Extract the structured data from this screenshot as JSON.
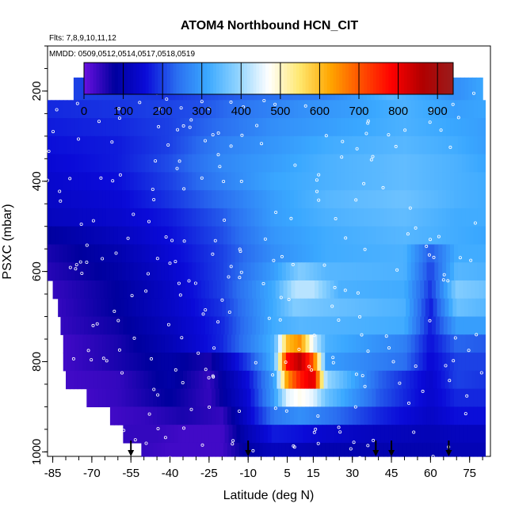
{
  "chart_data": {
    "type": "heatmap",
    "title": "ATOM4 Northbound HCN_CIT",
    "flights_label": "Flts: 7,8,9,10,11,12",
    "dates_label": "MMDD: 0509,0512,0514,0517,0518,0519",
    "xlabel": "Latitude (deg N)",
    "ylabel": "PSXC (mbar)",
    "xlim": [
      -87,
      83
    ],
    "ylim": [
      1010,
      100
    ],
    "x_ticks": [
      -85,
      -70,
      -55,
      -40,
      -25,
      -10,
      5,
      15,
      30,
      45,
      60,
      75
    ],
    "y_ticks": [
      200,
      400,
      600,
      800,
      1000
    ],
    "colorbar": {
      "range": [
        0,
        940
      ],
      "ticks": [
        0,
        100,
        200,
        300,
        400,
        500,
        600,
        700,
        800,
        900
      ],
      "colors": [
        "#6a10e0",
        "#00009e",
        "#0a0ad8",
        "#2a6df0",
        "#3aa8ff",
        "#8fd3ff",
        "#ffffff",
        "#ffe870",
        "#ffa600",
        "#ff5000",
        "#ff0000",
        "#b00000",
        "#9a1c1c"
      ]
    },
    "arrows_lat": [
      -55,
      -10,
      39,
      45,
      67
    ],
    "rows": [
      {
        "p": 200,
        "xmin": -77,
        "xmax": 80,
        "v": [
          [
            -77,
            200
          ],
          [
            -40,
            190
          ],
          [
            -10,
            230
          ],
          [
            20,
            260
          ],
          [
            45,
            340
          ],
          [
            70,
            280
          ],
          [
            80,
            310
          ]
        ]
      },
      {
        "p": 240,
        "xmin": -87,
        "xmax": 81,
        "v": [
          [
            -87,
            180
          ],
          [
            -60,
            190
          ],
          [
            -30,
            210
          ],
          [
            -10,
            250
          ],
          [
            10,
            280
          ],
          [
            30,
            300
          ],
          [
            50,
            330
          ],
          [
            70,
            300
          ],
          [
            81,
            310
          ]
        ]
      },
      {
        "p": 280,
        "xmin": -87,
        "xmax": 81,
        "v": [
          [
            -87,
            170
          ],
          [
            -60,
            180
          ],
          [
            -40,
            200
          ],
          [
            -20,
            240
          ],
          [
            0,
            280
          ],
          [
            20,
            300
          ],
          [
            50,
            330
          ],
          [
            70,
            310
          ],
          [
            81,
            300
          ]
        ]
      },
      {
        "p": 320,
        "xmin": -87,
        "xmax": 81,
        "v": [
          [
            -87,
            160
          ],
          [
            -60,
            170
          ],
          [
            -40,
            200
          ],
          [
            -20,
            260
          ],
          [
            0,
            290
          ],
          [
            20,
            320
          ],
          [
            50,
            340
          ],
          [
            70,
            320
          ],
          [
            81,
            300
          ]
        ]
      },
      {
        "p": 360,
        "xmin": -87,
        "xmax": 81,
        "v": [
          [
            -87,
            150
          ],
          [
            -60,
            170
          ],
          [
            -40,
            210
          ],
          [
            -20,
            270
          ],
          [
            0,
            300
          ],
          [
            20,
            330
          ],
          [
            50,
            350
          ],
          [
            70,
            330
          ],
          [
            81,
            310
          ]
        ]
      },
      {
        "p": 400,
        "xmin": -87,
        "xmax": 81,
        "v": [
          [
            -87,
            140
          ],
          [
            -60,
            160
          ],
          [
            -40,
            200
          ],
          [
            -20,
            260
          ],
          [
            0,
            310
          ],
          [
            20,
            330
          ],
          [
            50,
            350
          ],
          [
            70,
            330
          ],
          [
            81,
            320
          ]
        ]
      },
      {
        "p": 440,
        "xmin": -87,
        "xmax": 81,
        "v": [
          [
            -87,
            130
          ],
          [
            -60,
            150
          ],
          [
            -40,
            190
          ],
          [
            -20,
            240
          ],
          [
            0,
            300
          ],
          [
            20,
            340
          ],
          [
            50,
            360
          ],
          [
            70,
            330
          ],
          [
            81,
            320
          ]
        ]
      },
      {
        "p": 480,
        "xmin": -87,
        "xmax": 81,
        "v": [
          [
            -87,
            120
          ],
          [
            -60,
            140
          ],
          [
            -40,
            170
          ],
          [
            -20,
            220
          ],
          [
            0,
            300
          ],
          [
            20,
            330
          ],
          [
            50,
            350
          ],
          [
            70,
            320
          ],
          [
            81,
            320
          ]
        ]
      },
      {
        "p": 520,
        "xmin": -87,
        "xmax": 81,
        "v": [
          [
            -87,
            80
          ],
          [
            -60,
            120
          ],
          [
            -40,
            160
          ],
          [
            -20,
            210
          ],
          [
            0,
            290
          ],
          [
            20,
            320
          ],
          [
            50,
            340
          ],
          [
            70,
            320
          ],
          [
            81,
            310
          ]
        ]
      },
      {
        "p": 560,
        "xmin": -87,
        "xmax": 81,
        "v": [
          [
            -87,
            60
          ],
          [
            -60,
            100
          ],
          [
            -40,
            150
          ],
          [
            -20,
            200
          ],
          [
            0,
            280
          ],
          [
            20,
            320
          ],
          [
            50,
            330
          ],
          [
            60,
            220
          ],
          [
            70,
            320
          ],
          [
            81,
            320
          ]
        ]
      },
      {
        "p": 600,
        "xmin": -87,
        "xmax": 81,
        "v": [
          [
            -87,
            50
          ],
          [
            -60,
            90
          ],
          [
            -40,
            140
          ],
          [
            -20,
            200
          ],
          [
            0,
            300
          ],
          [
            10,
            380
          ],
          [
            20,
            340
          ],
          [
            50,
            330
          ],
          [
            60,
            200
          ],
          [
            70,
            340
          ],
          [
            81,
            330
          ]
        ]
      },
      {
        "p": 640,
        "xmin": -85,
        "xmax": 81,
        "v": [
          [
            -85,
            40
          ],
          [
            -60,
            80
          ],
          [
            -40,
            130
          ],
          [
            -20,
            200
          ],
          [
            0,
            320
          ],
          [
            8,
            420
          ],
          [
            15,
            420
          ],
          [
            25,
            330
          ],
          [
            50,
            320
          ],
          [
            60,
            190
          ],
          [
            70,
            380
          ],
          [
            81,
            360
          ]
        ]
      },
      {
        "p": 680,
        "xmin": -83,
        "xmax": 81,
        "v": [
          [
            -83,
            40
          ],
          [
            -60,
            80
          ],
          [
            -40,
            130
          ],
          [
            -20,
            190
          ],
          [
            0,
            320
          ],
          [
            8,
            380
          ],
          [
            20,
            360
          ],
          [
            50,
            330
          ],
          [
            60,
            170
          ],
          [
            70,
            360
          ],
          [
            81,
            340
          ]
        ]
      },
      {
        "p": 720,
        "xmin": -82,
        "xmax": 81,
        "v": [
          [
            -82,
            40
          ],
          [
            -60,
            70
          ],
          [
            -40,
            120
          ],
          [
            -20,
            180
          ],
          [
            0,
            320
          ],
          [
            10,
            340
          ],
          [
            50,
            320
          ],
          [
            60,
            170
          ],
          [
            70,
            300
          ],
          [
            81,
            300
          ]
        ]
      },
      {
        "p": 760,
        "xmin": -81,
        "xmax": 81,
        "v": [
          [
            -81,
            30
          ],
          [
            -60,
            60
          ],
          [
            -40,
            110
          ],
          [
            -20,
            180
          ],
          [
            0,
            330
          ],
          [
            5,
            600
          ],
          [
            10,
            650
          ],
          [
            15,
            450
          ],
          [
            20,
            330
          ],
          [
            50,
            260
          ],
          [
            60,
            160
          ],
          [
            70,
            230
          ],
          [
            81,
            220
          ]
        ]
      },
      {
        "p": 800,
        "xmin": -81,
        "xmax": 81,
        "v": [
          [
            -81,
            30
          ],
          [
            -60,
            60
          ],
          [
            -40,
            90
          ],
          [
            -25,
            60
          ],
          [
            -10,
            200
          ],
          [
            0,
            330
          ],
          [
            5,
            780
          ],
          [
            10,
            850
          ],
          [
            15,
            700
          ],
          [
            20,
            300
          ],
          [
            50,
            240
          ],
          [
            60,
            150
          ],
          [
            70,
            200
          ],
          [
            81,
            200
          ]
        ]
      },
      {
        "p": 840,
        "xmin": -80,
        "xmax": 81,
        "v": [
          [
            -80,
            30
          ],
          [
            -60,
            40
          ],
          [
            -40,
            90
          ],
          [
            -25,
            40
          ],
          [
            -10,
            160
          ],
          [
            0,
            300
          ],
          [
            5,
            640
          ],
          [
            10,
            760
          ],
          [
            15,
            820
          ],
          [
            20,
            400
          ],
          [
            40,
            230
          ],
          [
            60,
            140
          ],
          [
            70,
            200
          ],
          [
            81,
            190
          ]
        ]
      },
      {
        "p": 880,
        "xmin": -72,
        "xmax": 81,
        "v": [
          [
            -72,
            30
          ],
          [
            -60,
            40
          ],
          [
            -40,
            80
          ],
          [
            -25,
            40
          ],
          [
            -10,
            150
          ],
          [
            0,
            300
          ],
          [
            5,
            450
          ],
          [
            10,
            480
          ],
          [
            15,
            450
          ],
          [
            20,
            360
          ],
          [
            40,
            220
          ],
          [
            60,
            140
          ],
          [
            70,
            180
          ],
          [
            81,
            180
          ]
        ]
      },
      {
        "p": 920,
        "xmin": -63,
        "xmax": 81,
        "v": [
          [
            -63,
            30
          ],
          [
            -50,
            40
          ],
          [
            -35,
            60
          ],
          [
            -20,
            40
          ],
          [
            -10,
            140
          ],
          [
            0,
            250
          ],
          [
            10,
            280
          ],
          [
            20,
            250
          ],
          [
            40,
            180
          ],
          [
            60,
            130
          ],
          [
            70,
            160
          ],
          [
            81,
            160
          ]
        ]
      },
      {
        "p": 960,
        "xmin": -58,
        "xmax": 81,
        "v": [
          [
            -58,
            40
          ],
          [
            -45,
            40
          ],
          [
            -35,
            30
          ],
          [
            -20,
            30
          ],
          [
            -10,
            110
          ],
          [
            0,
            170
          ],
          [
            10,
            160
          ],
          [
            20,
            140
          ],
          [
            40,
            120
          ],
          [
            60,
            110
          ],
          [
            70,
            120
          ],
          [
            81,
            120
          ]
        ]
      },
      {
        "p": 1000,
        "xmin": -51,
        "xmax": 81,
        "v": [
          [
            -51,
            40
          ],
          [
            -40,
            30
          ],
          [
            -20,
            30
          ],
          [
            -10,
            90
          ],
          [
            0,
            120
          ],
          [
            10,
            110
          ],
          [
            20,
            100
          ],
          [
            40,
            100
          ],
          [
            60,
            100
          ],
          [
            70,
            110
          ],
          [
            81,
            110
          ]
        ]
      }
    ]
  }
}
